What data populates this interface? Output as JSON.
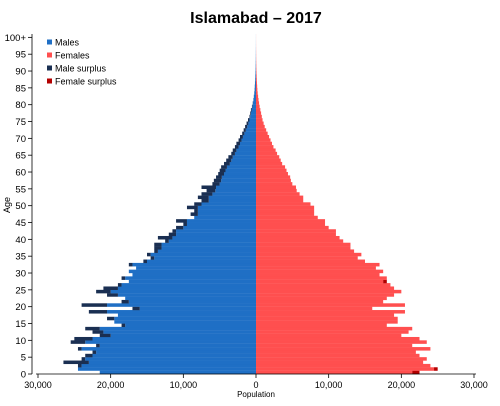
{
  "chart_data": {
    "type": "bar",
    "orientation": "horizontal-population-pyramid",
    "title": "Islamabad – 2017",
    "xlabel": "Population",
    "ylabel": "Age",
    "xlim": [
      -30000,
      30000
    ],
    "ylim": [
      0,
      100
    ],
    "grid": false,
    "legend_position": "top-left",
    "x_tick_values": [
      -30000,
      -20000,
      -10000,
      0,
      10000,
      20000,
      30000
    ],
    "x_tick_labels": [
      "30,000",
      "20,000",
      "10,000",
      "0",
      "10,000",
      "20,000",
      "30,000"
    ],
    "y_tick_values": [
      0,
      5,
      10,
      15,
      20,
      25,
      30,
      35,
      40,
      45,
      50,
      55,
      60,
      65,
      70,
      75,
      80,
      85,
      90,
      95,
      100
    ],
    "y_tick_labels": [
      "0",
      "5",
      "10",
      "15",
      "20",
      "25",
      "30",
      "35",
      "40",
      "45",
      "50",
      "55",
      "60",
      "65",
      "70",
      "75",
      "80",
      "85",
      "90",
      "95",
      "100+"
    ],
    "legend": [
      {
        "label": "Males",
        "color": "#1f6fc5"
      },
      {
        "label": "Females",
        "color": "#ff4f4f"
      },
      {
        "label": "Male surplus",
        "color": "#1a2f52"
      },
      {
        "label": "Female surplus",
        "color": "#b30000"
      }
    ],
    "ages": [
      0,
      1,
      2,
      3,
      4,
      5,
      6,
      7,
      8,
      9,
      10,
      11,
      12,
      13,
      14,
      15,
      16,
      17,
      18,
      19,
      20,
      21,
      22,
      23,
      24,
      25,
      26,
      27,
      28,
      29,
      30,
      31,
      32,
      33,
      34,
      35,
      36,
      37,
      38,
      39,
      40,
      41,
      42,
      43,
      44,
      45,
      46,
      47,
      48,
      49,
      50,
      51,
      52,
      53,
      54,
      55,
      56,
      57,
      58,
      59,
      60,
      61,
      62,
      63,
      64,
      65,
      66,
      67,
      68,
      69,
      70,
      71,
      72,
      73,
      74,
      75,
      76,
      77,
      78,
      79,
      80,
      81,
      82,
      83,
      84,
      85,
      86,
      87,
      88,
      89,
      90,
      91,
      92,
      93,
      94,
      95,
      96,
      97,
      98,
      99,
      100
    ],
    "series": [
      {
        "name": "Males",
        "values": [
          21500,
          24500,
          24500,
          26500,
          24000,
          23500,
          22500,
          24500,
          22000,
          25500,
          25000,
          21500,
          22500,
          23500,
          18500,
          19500,
          20500,
          19000,
          23000,
          17000,
          24000,
          18500,
          18000,
          20500,
          22000,
          21000,
          19000,
          17500,
          18500,
          17000,
          17500,
          16500,
          17500,
          15500,
          14500,
          15000,
          14000,
          14000,
          14000,
          12500,
          13500,
          12000,
          11500,
          11000,
          10000,
          11000,
          8500,
          9000,
          8500,
          9500,
          8500,
          7500,
          8000,
          7500,
          6800,
          7500,
          6000,
          5800,
          5500,
          5200,
          5000,
          4800,
          4400,
          4100,
          3800,
          3400,
          3200,
          2900,
          2700,
          2400,
          2200,
          1900,
          1700,
          1500,
          1300,
          1100,
          900,
          800,
          700,
          560,
          450,
          360,
          300,
          240,
          200,
          170,
          140,
          110,
          90,
          70,
          55,
          45,
          35,
          28,
          22,
          18,
          14,
          10,
          8,
          6,
          5
        ]
      },
      {
        "name": "Females",
        "values": [
          22500,
          25000,
          24000,
          23000,
          23500,
          22500,
          22000,
          24000,
          21500,
          23500,
          22500,
          20000,
          21000,
          21500,
          18000,
          19500,
          19500,
          19000,
          20500,
          16000,
          20500,
          17500,
          18000,
          19000,
          20000,
          19000,
          18500,
          18000,
          18000,
          17000,
          17500,
          16500,
          17000,
          15000,
          14000,
          14500,
          13500,
          13000,
          13000,
          12000,
          11500,
          11000,
          11000,
          10000,
          9500,
          9500,
          8500,
          8000,
          8000,
          8000,
          7500,
          6500,
          6500,
          6000,
          5600,
          5500,
          5000,
          4800,
          4700,
          4400,
          4200,
          4000,
          3600,
          3400,
          3200,
          2900,
          2700,
          2400,
          2200,
          2000,
          1800,
          1600,
          1400,
          1200,
          1050,
          900,
          800,
          700,
          600,
          500,
          420,
          350,
          290,
          230,
          190,
          160,
          130,
          110,
          90,
          70,
          55,
          45,
          35,
          28,
          22,
          18,
          14,
          10,
          8,
          6,
          5
        ]
      }
    ]
  }
}
